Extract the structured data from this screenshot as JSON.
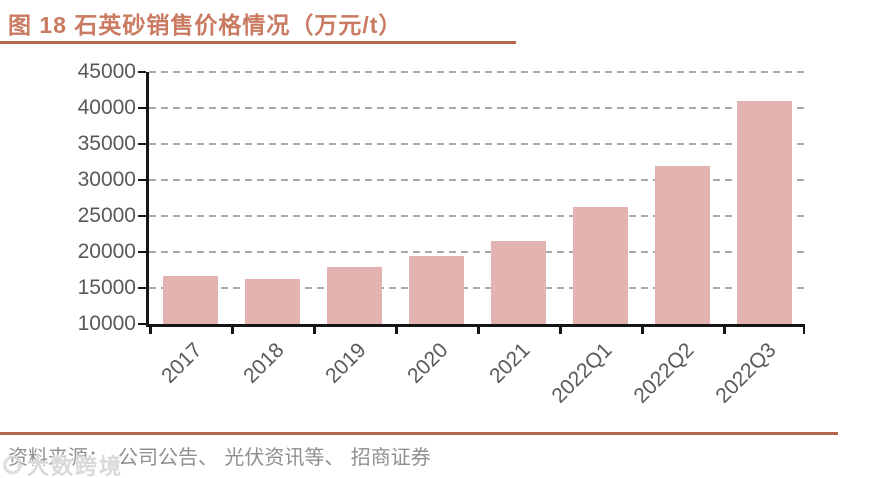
{
  "header": {
    "title": "图 18  石英砂销售价格情况（万元/t）"
  },
  "chart_data": {
    "type": "bar",
    "title": "石英砂销售价格情况（万元/t）",
    "categories": [
      "2017",
      "2018",
      "2019",
      "2020",
      "2021",
      "2022Q1",
      "2022Q2",
      "2022Q3"
    ],
    "values": [
      16600,
      16200,
      17900,
      19500,
      21500,
      26200,
      32000,
      41000
    ],
    "xlabel": "",
    "ylabel": "",
    "ylim": [
      10000,
      45000
    ],
    "ytick_step": 5000,
    "grid": "horizontal-dashed",
    "legend": "none",
    "bar_color": "#e2b3b1",
    "x_label_rotation_deg": -45
  },
  "footer": {
    "source_label": "资料来源：",
    "source_text": "公司公告、 光伏资讯等、 招商证券"
  },
  "watermark": {
    "text": "大数跨境"
  },
  "colors": {
    "accent_title": "#c97a60",
    "rule_line": "#b2664d",
    "axis": "#151515",
    "tick_label": "#595959",
    "gridline": "#a9a9a9",
    "source_text": "#8f8f8f",
    "watermark": "#d9d9d9"
  }
}
